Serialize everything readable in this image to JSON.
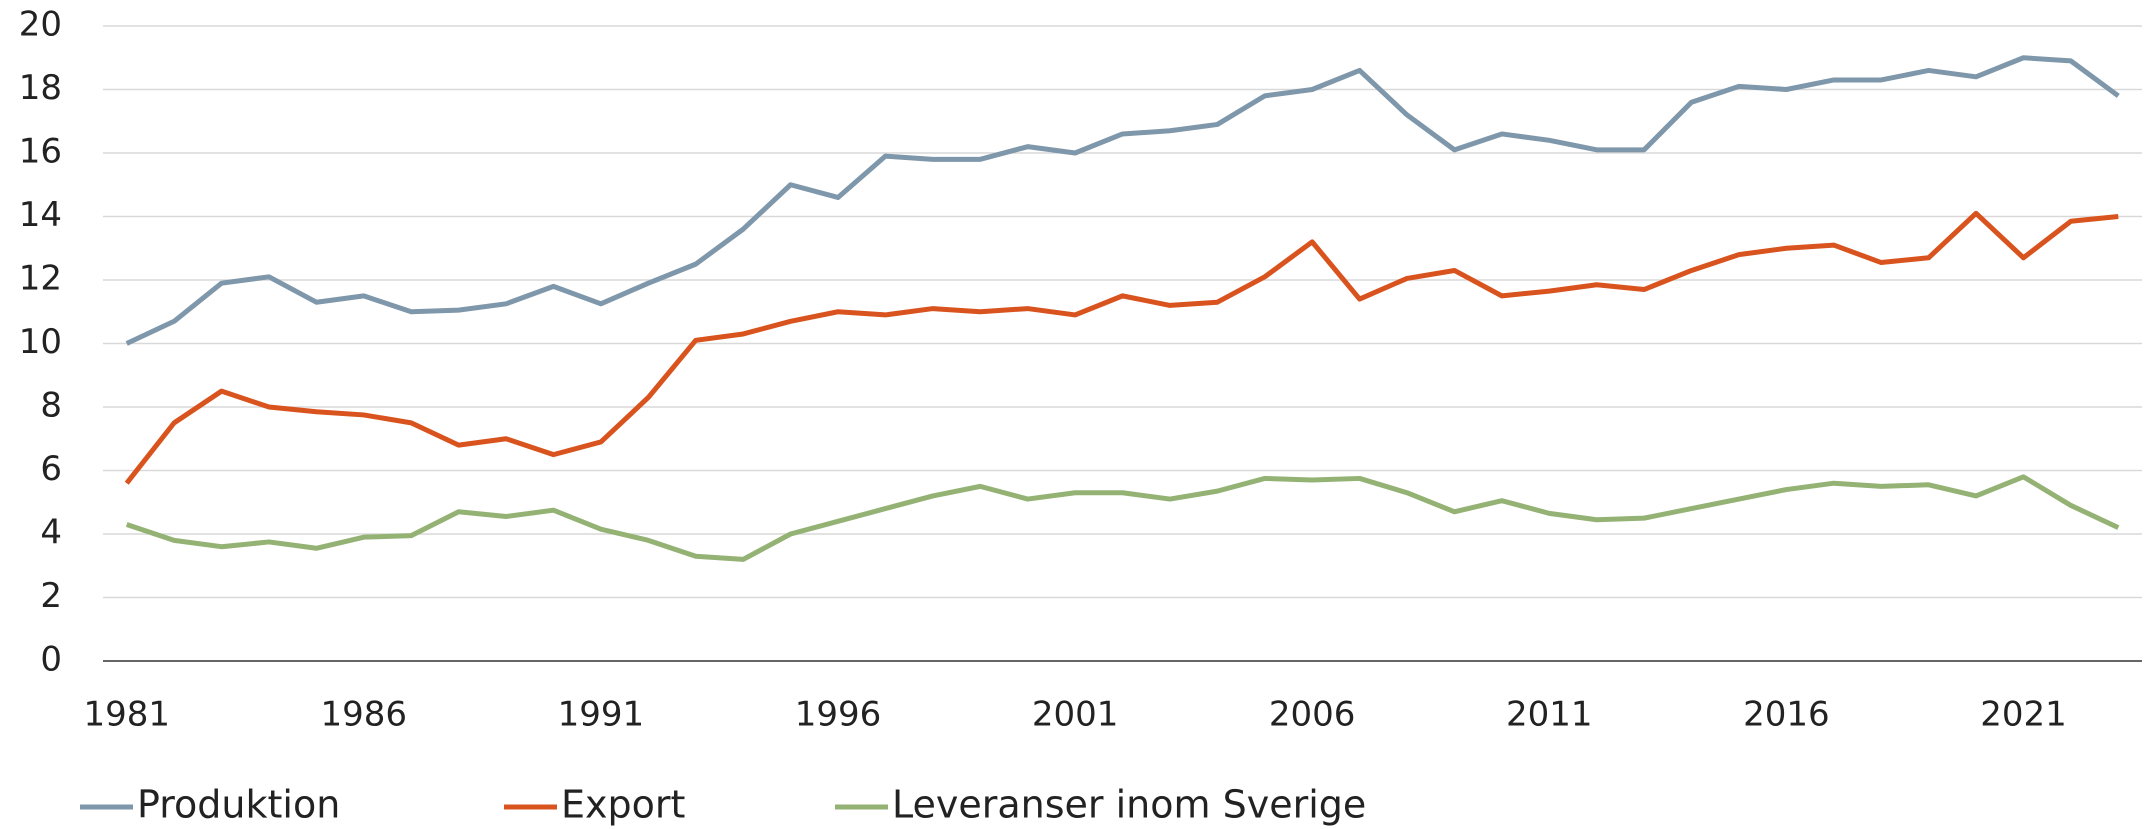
{
  "chart_data": {
    "type": "line",
    "x": [
      1981,
      1982,
      1983,
      1984,
      1985,
      1986,
      1987,
      1988,
      1989,
      1990,
      1991,
      1992,
      1993,
      1994,
      1995,
      1996,
      1997,
      1998,
      1999,
      2000,
      2001,
      2002,
      2003,
      2004,
      2005,
      2006,
      2007,
      2008,
      2009,
      2010,
      2011,
      2012,
      2013,
      2014,
      2015,
      2016,
      2017,
      2018,
      2019,
      2020,
      2021,
      2022,
      2023
    ],
    "series": [
      {
        "name": "Produktion",
        "color": "#7f97aa",
        "values": [
          10.0,
          10.7,
          11.9,
          12.1,
          11.3,
          11.5,
          11.0,
          11.05,
          11.25,
          11.8,
          11.25,
          11.9,
          12.5,
          13.6,
          15.0,
          14.6,
          15.9,
          15.8,
          15.8,
          16.2,
          16.0,
          16.6,
          16.7,
          16.9,
          17.8,
          18.0,
          18.6,
          17.2,
          16.1,
          16.6,
          16.4,
          16.1,
          16.1,
          17.6,
          18.1,
          18.0,
          18.3,
          18.3,
          18.6,
          18.4,
          19.0,
          18.9,
          17.8
        ]
      },
      {
        "name": "Export",
        "color": "#d9531e",
        "values": [
          5.6,
          7.5,
          8.5,
          8.0,
          7.85,
          7.75,
          7.5,
          6.8,
          7.0,
          6.5,
          6.9,
          8.3,
          10.1,
          10.3,
          10.7,
          11.0,
          10.9,
          11.1,
          11.0,
          11.1,
          10.9,
          11.5,
          11.2,
          11.3,
          12.1,
          13.2,
          11.4,
          12.05,
          12.3,
          11.5,
          11.65,
          11.85,
          11.7,
          12.3,
          12.8,
          13.0,
          13.1,
          12.55,
          12.7,
          14.1,
          12.7,
          13.85,
          14.0
        ]
      },
      {
        "name": "Leveranser inom Sverige",
        "color": "#93b274",
        "values": [
          4.3,
          3.8,
          3.6,
          3.75,
          3.55,
          3.9,
          3.95,
          4.7,
          4.55,
          4.75,
          4.15,
          3.8,
          3.3,
          3.2,
          4.0,
          4.4,
          4.8,
          5.2,
          5.5,
          5.1,
          5.3,
          5.3,
          5.1,
          5.35,
          5.75,
          5.7,
          5.75,
          5.3,
          4.7,
          5.05,
          4.65,
          4.45,
          4.5,
          4.8,
          5.1,
          5.4,
          5.6,
          5.5,
          5.55,
          5.2,
          5.8,
          4.9,
          4.2
        ]
      }
    ],
    "xlim": [
      1980.5,
      2023.5
    ],
    "xticks": [
      1981,
      1986,
      1991,
      1996,
      2001,
      2006,
      2011,
      2016,
      2021
    ],
    "ylim": [
      0,
      20
    ],
    "yticks": [
      0,
      2,
      4,
      6,
      8,
      10,
      12,
      14,
      16,
      18,
      20
    ],
    "grid": true,
    "legend": "bottom"
  }
}
